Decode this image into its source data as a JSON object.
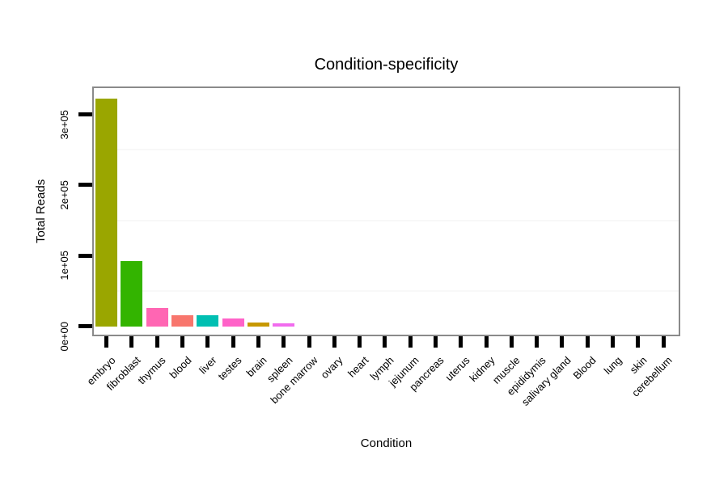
{
  "chart_data": {
    "type": "bar",
    "title": "Condition-specificity",
    "xlabel": "Condition",
    "ylabel": "Total Reads",
    "categories": [
      "embryo",
      "fibroblast",
      "thymus",
      "blood",
      "liver",
      "testes",
      "brain",
      "spleen",
      "bone marrow",
      "ovary",
      "heart",
      "lymph",
      "jejunum",
      "pancreas",
      "uterus",
      "kidney",
      "muscle",
      "epididymis",
      "salivary gland",
      "Blood",
      "lung",
      "skin",
      "cerebellum"
    ],
    "values": [
      322000,
      92000,
      26000,
      15000,
      15000,
      11000,
      5400,
      4300,
      0,
      0,
      0,
      0,
      0,
      0,
      0,
      0,
      0,
      0,
      0,
      0,
      0,
      0,
      0
    ],
    "colors": [
      "#9AA600",
      "#33B400",
      "#FF66B3",
      "#F8766D",
      "#00BFB2",
      "#FF62C8",
      "#C79800",
      "#F16BEE",
      null,
      null,
      null,
      null,
      null,
      null,
      null,
      null,
      null,
      null,
      null,
      null,
      null,
      null,
      null
    ],
    "ytick_values": [
      0,
      100000,
      200000,
      300000
    ],
    "ytick_labels": [
      "0e+00",
      "1e+05",
      "2e+05",
      "3e+05"
    ],
    "minor_grid_values": [
      50000,
      150000,
      250000
    ],
    "ylim": [
      0,
      349000
    ],
    "grid": "faint horizontal minor gridlines only",
    "legend": "none"
  }
}
